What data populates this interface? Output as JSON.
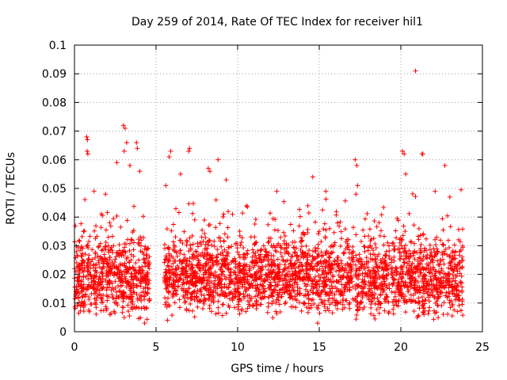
{
  "chart_data": {
    "type": "scatter",
    "title": "Day 259 of 2014, Rate Of TEC Index for receiver hil1",
    "xlabel": "GPS time / hours",
    "ylabel": "ROTI / TECUs",
    "xlim": [
      0,
      25
    ],
    "ylim": [
      0,
      0.1
    ],
    "xticks": [
      0,
      5,
      10,
      15,
      20,
      25
    ],
    "xtick_labels": [
      "0",
      "5",
      "10",
      "15",
      "20",
      "25"
    ],
    "yticks": [
      0,
      0.01,
      0.02,
      0.03,
      0.04,
      0.05,
      0.06,
      0.07,
      0.08,
      0.09,
      0.1
    ],
    "ytick_labels": [
      "0",
      "0.01",
      "0.02",
      "0.03",
      "0.04",
      "0.05",
      "0.06",
      "0.07",
      "0.08",
      "0.09",
      "0.1"
    ],
    "grid": true,
    "marker": "+",
    "marker_color": "#ff0000",
    "series": [
      {
        "name": "hil1",
        "segments": [
          {
            "start": 0.0,
            "end": 4.6,
            "base": 0.018,
            "spread": 0.012
          },
          {
            "start": 5.5,
            "end": 17.1,
            "base": 0.019,
            "spread": 0.012
          },
          {
            "start": 17.2,
            "end": 19.3,
            "base": 0.017,
            "spread": 0.011
          },
          {
            "start": 19.4,
            "end": 23.8,
            "base": 0.018,
            "spread": 0.012
          }
        ],
        "highlights": [
          {
            "x": 0.75,
            "y": 0.068
          },
          {
            "x": 0.8,
            "y": 0.067
          },
          {
            "x": 0.78,
            "y": 0.063
          },
          {
            "x": 0.82,
            "y": 0.062
          },
          {
            "x": 1.2,
            "y": 0.049
          },
          {
            "x": 1.9,
            "y": 0.048
          },
          {
            "x": 2.6,
            "y": 0.059
          },
          {
            "x": 3.0,
            "y": 0.072
          },
          {
            "x": 3.1,
            "y": 0.071
          },
          {
            "x": 3.05,
            "y": 0.063
          },
          {
            "x": 3.2,
            "y": 0.066
          },
          {
            "x": 3.4,
            "y": 0.058
          },
          {
            "x": 3.8,
            "y": 0.066
          },
          {
            "x": 3.85,
            "y": 0.064
          },
          {
            "x": 4.0,
            "y": 0.056
          },
          {
            "x": 5.6,
            "y": 0.051
          },
          {
            "x": 5.8,
            "y": 0.061
          },
          {
            "x": 5.9,
            "y": 0.063
          },
          {
            "x": 6.5,
            "y": 0.055
          },
          {
            "x": 7.0,
            "y": 0.063
          },
          {
            "x": 7.05,
            "y": 0.064
          },
          {
            "x": 8.2,
            "y": 0.057
          },
          {
            "x": 8.3,
            "y": 0.056
          },
          {
            "x": 8.8,
            "y": 0.06
          },
          {
            "x": 9.3,
            "y": 0.053
          },
          {
            "x": 12.4,
            "y": 0.049
          },
          {
            "x": 14.6,
            "y": 0.054
          },
          {
            "x": 15.4,
            "y": 0.049
          },
          {
            "x": 17.2,
            "y": 0.06
          },
          {
            "x": 17.3,
            "y": 0.058
          },
          {
            "x": 17.35,
            "y": 0.051
          },
          {
            "x": 17.25,
            "y": 0.048
          },
          {
            "x": 20.1,
            "y": 0.063
          },
          {
            "x": 20.2,
            "y": 0.062
          },
          {
            "x": 20.3,
            "y": 0.055
          },
          {
            "x": 20.9,
            "y": 0.091
          },
          {
            "x": 21.3,
            "y": 0.062
          },
          {
            "x": 21.35,
            "y": 0.062
          },
          {
            "x": 22.1,
            "y": 0.049
          },
          {
            "x": 22.7,
            "y": 0.058
          },
          {
            "x": 23.0,
            "y": 0.047
          },
          {
            "x": 14.9,
            "y": 0.003
          },
          {
            "x": 4.3,
            "y": 0.003
          },
          {
            "x": 5.7,
            "y": 0.004
          }
        ]
      }
    ]
  }
}
